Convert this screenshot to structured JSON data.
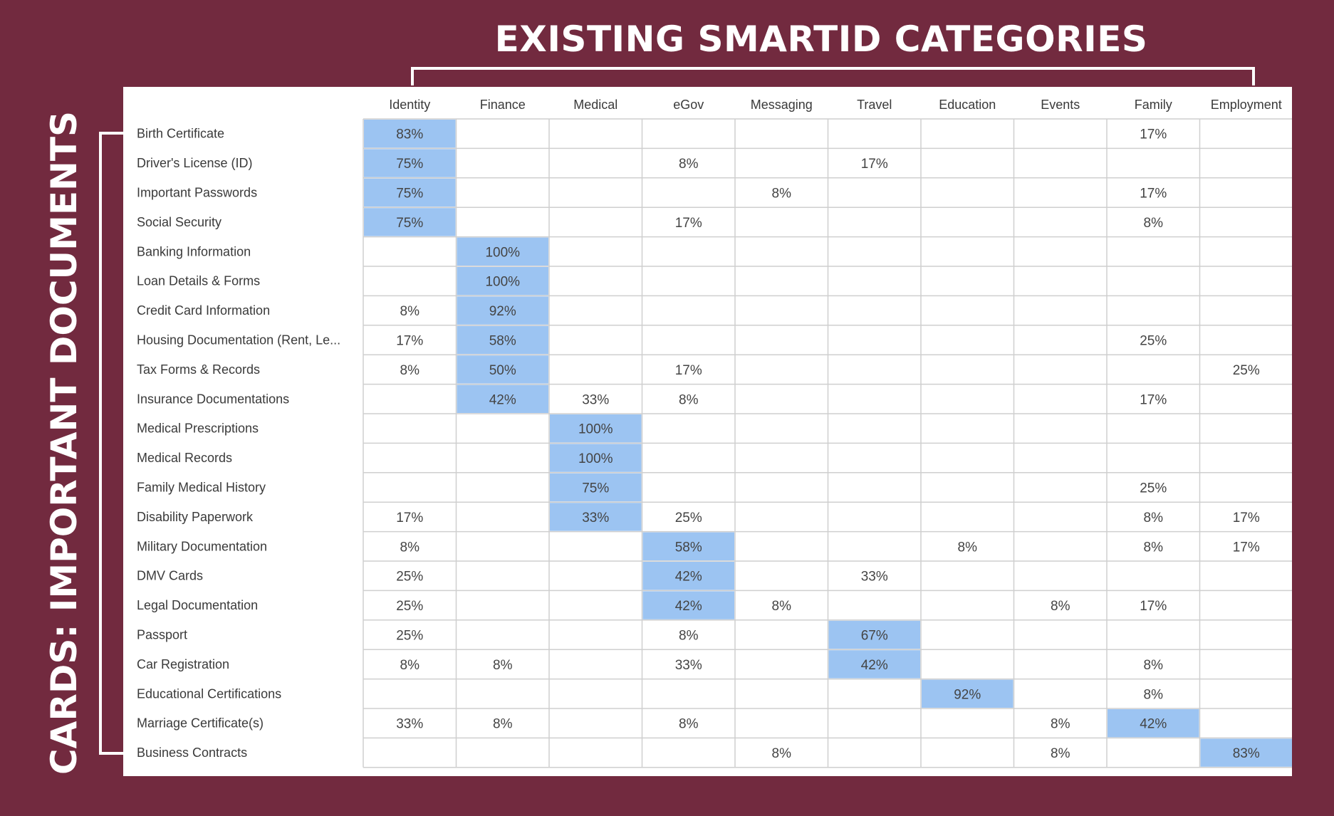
{
  "header": {
    "title": "EXISTING SMARTID CATEGORIES"
  },
  "sidebar": {
    "title": "CARDS: IMPORTANT  DOCUMENTS"
  },
  "chart_data": {
    "type": "table",
    "title": "EXISTING SMARTID CATEGORIES",
    "ylabel": "CARDS: IMPORTANT  DOCUMENTS",
    "columns": [
      "Identity",
      "Finance",
      "Medical",
      "eGov",
      "Messaging",
      "Travel",
      "Education",
      "Events",
      "Family",
      "Employment"
    ],
    "rows": [
      {
        "label": "Birth Certificate",
        "values": [
          "83%",
          "",
          "",
          "",
          "",
          "",
          "",
          "",
          "17%",
          ""
        ],
        "highlight": 0
      },
      {
        "label": "Driver's License (ID)",
        "values": [
          "75%",
          "",
          "",
          "8%",
          "",
          "17%",
          "",
          "",
          "",
          ""
        ],
        "highlight": 0
      },
      {
        "label": "Important Passwords",
        "values": [
          "75%",
          "",
          "",
          "",
          "8%",
          "",
          "",
          "",
          "17%",
          ""
        ],
        "highlight": 0
      },
      {
        "label": "Social Security",
        "values": [
          "75%",
          "",
          "",
          "17%",
          "",
          "",
          "",
          "",
          "8%",
          ""
        ],
        "highlight": 0
      },
      {
        "label": "Banking Information",
        "values": [
          "",
          "100%",
          "",
          "",
          "",
          "",
          "",
          "",
          "",
          ""
        ],
        "highlight": 1
      },
      {
        "label": "Loan Details & Forms",
        "values": [
          "",
          "100%",
          "",
          "",
          "",
          "",
          "",
          "",
          "",
          ""
        ],
        "highlight": 1
      },
      {
        "label": "Credit Card Information",
        "values": [
          "8%",
          "92%",
          "",
          "",
          "",
          "",
          "",
          "",
          "",
          ""
        ],
        "highlight": 1
      },
      {
        "label": "Housing Documentation (Rent, Le...",
        "values": [
          "17%",
          "58%",
          "",
          "",
          "",
          "",
          "",
          "",
          "25%",
          ""
        ],
        "highlight": 1
      },
      {
        "label": "Tax Forms & Records",
        "values": [
          "8%",
          "50%",
          "",
          "17%",
          "",
          "",
          "",
          "",
          "",
          "25%"
        ],
        "highlight": 1
      },
      {
        "label": "Insurance Documentations",
        "values": [
          "",
          "42%",
          "33%",
          "8%",
          "",
          "",
          "",
          "",
          "17%",
          ""
        ],
        "highlight": 1
      },
      {
        "label": "Medical Prescriptions",
        "values": [
          "",
          "",
          "100%",
          "",
          "",
          "",
          "",
          "",
          "",
          ""
        ],
        "highlight": 2
      },
      {
        "label": "Medical Records",
        "values": [
          "",
          "",
          "100%",
          "",
          "",
          "",
          "",
          "",
          "",
          ""
        ],
        "highlight": 2
      },
      {
        "label": "Family Medical History",
        "values": [
          "",
          "",
          "75%",
          "",
          "",
          "",
          "",
          "",
          "25%",
          ""
        ],
        "highlight": 2
      },
      {
        "label": "Disability Paperwork",
        "values": [
          "17%",
          "",
          "33%",
          "25%",
          "",
          "",
          "",
          "",
          "8%",
          "17%"
        ],
        "highlight": 2
      },
      {
        "label": "Military Documentation",
        "values": [
          "8%",
          "",
          "",
          "58%",
          "",
          "",
          "8%",
          "",
          "8%",
          "17%"
        ],
        "highlight": 3
      },
      {
        "label": "DMV Cards",
        "values": [
          "25%",
          "",
          "",
          "42%",
          "",
          "33%",
          "",
          "",
          "",
          ""
        ],
        "highlight": 3
      },
      {
        "label": "Legal Documentation",
        "values": [
          "25%",
          "",
          "",
          "42%",
          "8%",
          "",
          "",
          "8%",
          "17%",
          ""
        ],
        "highlight": 3
      },
      {
        "label": "Passport",
        "values": [
          "25%",
          "",
          "",
          "8%",
          "",
          "67%",
          "",
          "",
          "",
          ""
        ],
        "highlight": 5
      },
      {
        "label": "Car Registration",
        "values": [
          "8%",
          "8%",
          "",
          "33%",
          "",
          "42%",
          "",
          "",
          "8%",
          ""
        ],
        "highlight": 5
      },
      {
        "label": "Educational Certifications",
        "values": [
          "",
          "",
          "",
          "",
          "",
          "",
          "92%",
          "",
          "8%",
          ""
        ],
        "highlight": 6
      },
      {
        "label": "Marriage Certificate(s)",
        "values": [
          "33%",
          "8%",
          "",
          "8%",
          "",
          "",
          "",
          "8%",
          "42%",
          ""
        ],
        "highlight": 8
      },
      {
        "label": "Business Contracts",
        "values": [
          "",
          "",
          "",
          "",
          "8%",
          "",
          "",
          "8%",
          "",
          "83%"
        ],
        "highlight": 9
      }
    ]
  },
  "colors": {
    "background": "#722a3f",
    "panel": "#ffffff",
    "highlight": "#9cc4f2",
    "grid": "#cfcfcf",
    "text": "#3a3a3a"
  }
}
